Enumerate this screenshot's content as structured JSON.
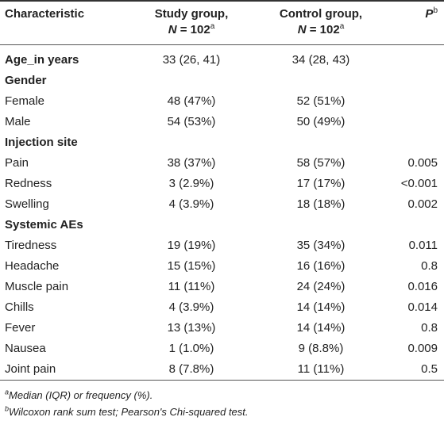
{
  "header": {
    "characteristic": "Characteristic",
    "study_group_line1": "Study group,",
    "study_group_n_label": "N",
    "study_group_n_value": " = 102",
    "study_group_sup": "a",
    "control_group_line1": "Control group,",
    "control_group_n_label": "N",
    "control_group_n_value": " = 102",
    "control_group_sup": "a",
    "p_label": "P",
    "p_sup": "b"
  },
  "age_row": {
    "label": "Age_in years",
    "study": "33 (26, 41)",
    "control": "34 (28, 43)",
    "p": ""
  },
  "sections": [
    {
      "title": "Gender",
      "rows": [
        {
          "label": "Female",
          "study": "48 (47%)",
          "control": "52 (51%)",
          "p": ""
        },
        {
          "label": "Male",
          "study": "54 (53%)",
          "control": "50 (49%)",
          "p": ""
        }
      ]
    },
    {
      "title": "Injection site",
      "rows": [
        {
          "label": "Pain",
          "study": "38 (37%)",
          "control": "58 (57%)",
          "p": "0.005"
        },
        {
          "label": "Redness",
          "study": "3 (2.9%)",
          "control": "17 (17%)",
          "p": "<0.001"
        },
        {
          "label": "Swelling",
          "study": "4 (3.9%)",
          "control": "18 (18%)",
          "p": "0.002"
        }
      ]
    },
    {
      "title": "Systemic AEs",
      "rows": [
        {
          "label": "Tiredness",
          "study": "19 (19%)",
          "control": "35 (34%)",
          "p": "0.011"
        },
        {
          "label": "Headache",
          "study": "15 (15%)",
          "control": "16 (16%)",
          "p": "0.8"
        },
        {
          "label": "Muscle pain",
          "study": "11 (11%)",
          "control": "24 (24%)",
          "p": "0.016"
        },
        {
          "label": "Chills",
          "study": "4 (3.9%)",
          "control": "14 (14%)",
          "p": "0.014"
        },
        {
          "label": "Fever",
          "study": "13 (13%)",
          "control": "14 (14%)",
          "p": "0.8"
        },
        {
          "label": "Nausea",
          "study": "1 (1.0%)",
          "control": "9 (8.8%)",
          "p": "0.009"
        },
        {
          "label": "Joint pain",
          "study": "8 (7.8%)",
          "control": "11 (11%)",
          "p": "0.5"
        }
      ]
    }
  ],
  "footnotes": [
    {
      "marker": "a",
      "text": "Median (IQR) or frequency (%)."
    },
    {
      "marker": "b",
      "text": "Wilcoxon rank sum test; Pearson's Chi-squared test."
    }
  ]
}
